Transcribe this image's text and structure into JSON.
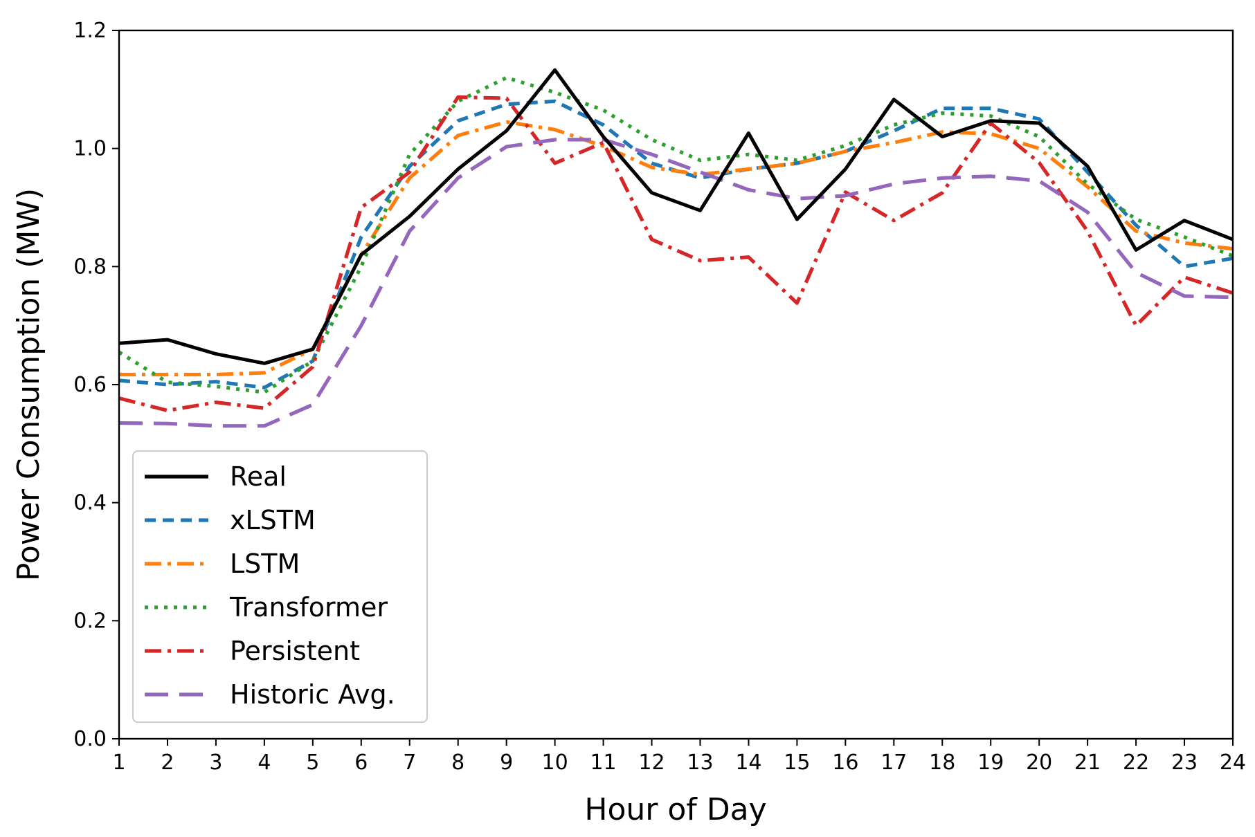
{
  "chart_data": {
    "type": "line",
    "title": "",
    "xlabel": "Hour of Day",
    "ylabel": "Power Consumption (MW)",
    "xlim": [
      1,
      24
    ],
    "ylim": [
      0.0,
      1.2
    ],
    "x_ticks": [
      "1",
      "2",
      "3",
      "4",
      "5",
      "6",
      "7",
      "8",
      "9",
      "10",
      "11",
      "12",
      "13",
      "14",
      "15",
      "16",
      "17",
      "18",
      "19",
      "20",
      "21",
      "22",
      "23",
      "24"
    ],
    "y_ticks": [
      "0.0",
      "0.2",
      "0.4",
      "0.6",
      "0.8",
      "1.0",
      "1.2"
    ],
    "grid": false,
    "legend_position": "lower-left",
    "x": [
      1,
      2,
      3,
      4,
      5,
      6,
      7,
      8,
      9,
      10,
      11,
      12,
      13,
      14,
      15,
      16,
      17,
      18,
      19,
      20,
      21,
      22,
      23,
      24
    ],
    "series": [
      {
        "name": "Real",
        "color": "#000000",
        "dash": "solid",
        "values": [
          0.67,
          0.676,
          0.652,
          0.636,
          0.66,
          0.82,
          0.885,
          0.965,
          1.03,
          1.133,
          1.02,
          0.925,
          0.895,
          1.026,
          0.88,
          0.965,
          1.083,
          1.02,
          1.047,
          1.043,
          0.97,
          0.828,
          0.878,
          0.846
        ]
      },
      {
        "name": "xLSTM",
        "color": "#1f77b4",
        "dash": "dashed",
        "values": [
          0.607,
          0.6,
          0.605,
          0.595,
          0.64,
          0.85,
          0.97,
          1.047,
          1.075,
          1.08,
          1.04,
          0.975,
          0.95,
          0.965,
          0.975,
          0.995,
          1.03,
          1.068,
          1.068,
          1.05,
          0.96,
          0.87,
          0.8,
          0.814
        ]
      },
      {
        "name": "LSTM",
        "color": "#ff7f0e",
        "dash": "dashdot",
        "values": [
          0.617,
          0.617,
          0.617,
          0.62,
          0.66,
          0.82,
          0.95,
          1.022,
          1.045,
          1.032,
          1.004,
          0.968,
          0.956,
          0.965,
          0.975,
          0.995,
          1.01,
          1.028,
          1.025,
          1.0,
          0.935,
          0.86,
          0.84,
          0.83
        ]
      },
      {
        "name": "Transformer",
        "color": "#2ca02c",
        "dash": "dotted",
        "values": [
          0.655,
          0.604,
          0.597,
          0.587,
          0.64,
          0.8,
          0.99,
          1.08,
          1.12,
          1.095,
          1.065,
          1.015,
          0.98,
          0.99,
          0.98,
          1.005,
          1.04,
          1.06,
          1.055,
          1.02,
          0.94,
          0.88,
          0.85,
          0.818
        ]
      },
      {
        "name": "Persistent",
        "color": "#d62728",
        "dash": "dashdot",
        "values": [
          0.577,
          0.556,
          0.57,
          0.56,
          0.63,
          0.9,
          0.96,
          1.087,
          1.085,
          0.975,
          1.01,
          0.846,
          0.81,
          0.816,
          0.738,
          0.926,
          0.878,
          0.925,
          1.043,
          0.976,
          0.86,
          0.7,
          0.782,
          0.755
        ]
      },
      {
        "name": "Historic Avg.",
        "color": "#9467bd",
        "dash": "longdash",
        "values": [
          0.535,
          0.534,
          0.53,
          0.53,
          0.566,
          0.7,
          0.86,
          0.95,
          1.003,
          1.015,
          1.015,
          0.99,
          0.96,
          0.93,
          0.915,
          0.92,
          0.94,
          0.95,
          0.953,
          0.945,
          0.892,
          0.79,
          0.75,
          0.748
        ]
      }
    ]
  }
}
